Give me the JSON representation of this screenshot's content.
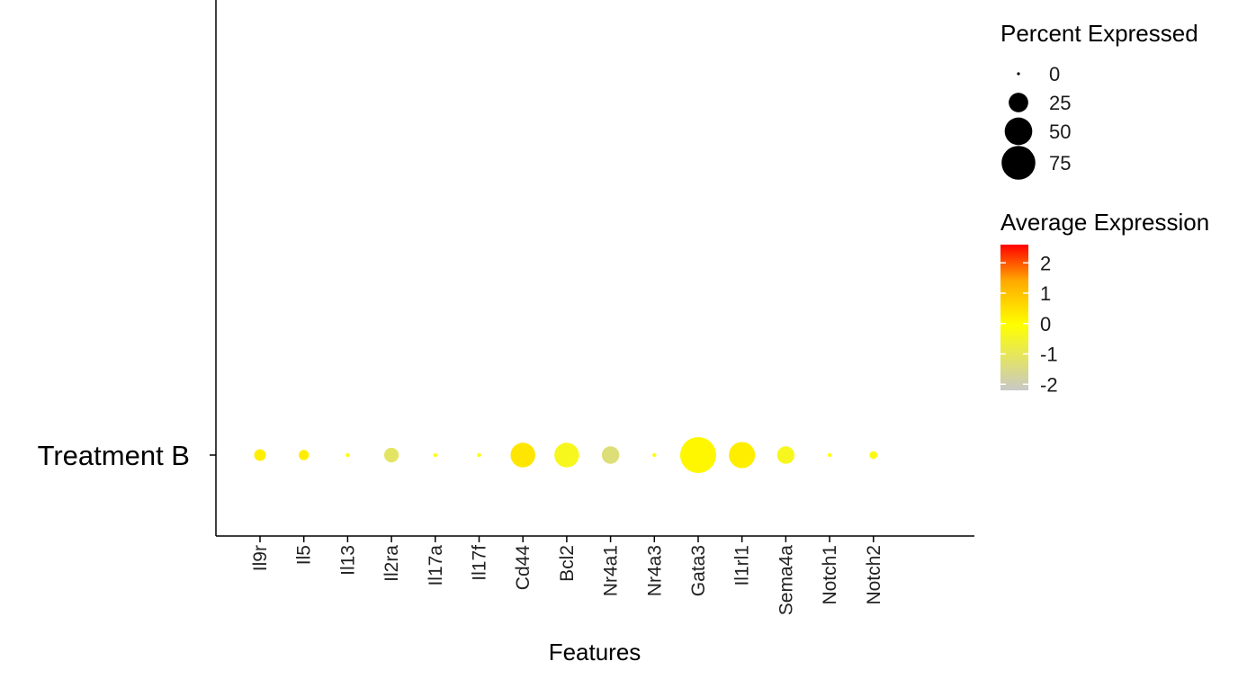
{
  "chart_data": {
    "type": "dot",
    "xlabel": "Features",
    "ylabel": "",
    "rows": [
      "Treatment B"
    ],
    "features": [
      "Il9r",
      "Il5",
      "Il13",
      "Il2ra",
      "Il17a",
      "Il17f",
      "Cd44",
      "Bcl2",
      "Nr4a1",
      "Nr4a3",
      "Gata3",
      "Il1rl1",
      "Sema4a",
      "Notch1",
      "Notch2"
    ],
    "percent_expressed": [
      9,
      7,
      1,
      14,
      1,
      1,
      40,
      40,
      20,
      1,
      85,
      45,
      20,
      1,
      4
    ],
    "average_expression": [
      0.2,
      0.2,
      0,
      -1.0,
      0,
      0,
      0.3,
      -0.3,
      -1.2,
      0,
      0.1,
      0.2,
      -0.3,
      0,
      -0.2
    ],
    "size_legend": {
      "title": "Percent Expressed",
      "values": [
        0,
        25,
        50,
        75
      ]
    },
    "color_legend": {
      "title": "Average Expression",
      "ticks": [
        2,
        1,
        0,
        -1,
        -2
      ],
      "range": [
        -2.2,
        2.6
      ],
      "colors": {
        "low": "#c8c8c8",
        "mid": "#ffff00",
        "mid2": "#ffaa00",
        "high": "#ff0000"
      }
    },
    "grid": false
  }
}
